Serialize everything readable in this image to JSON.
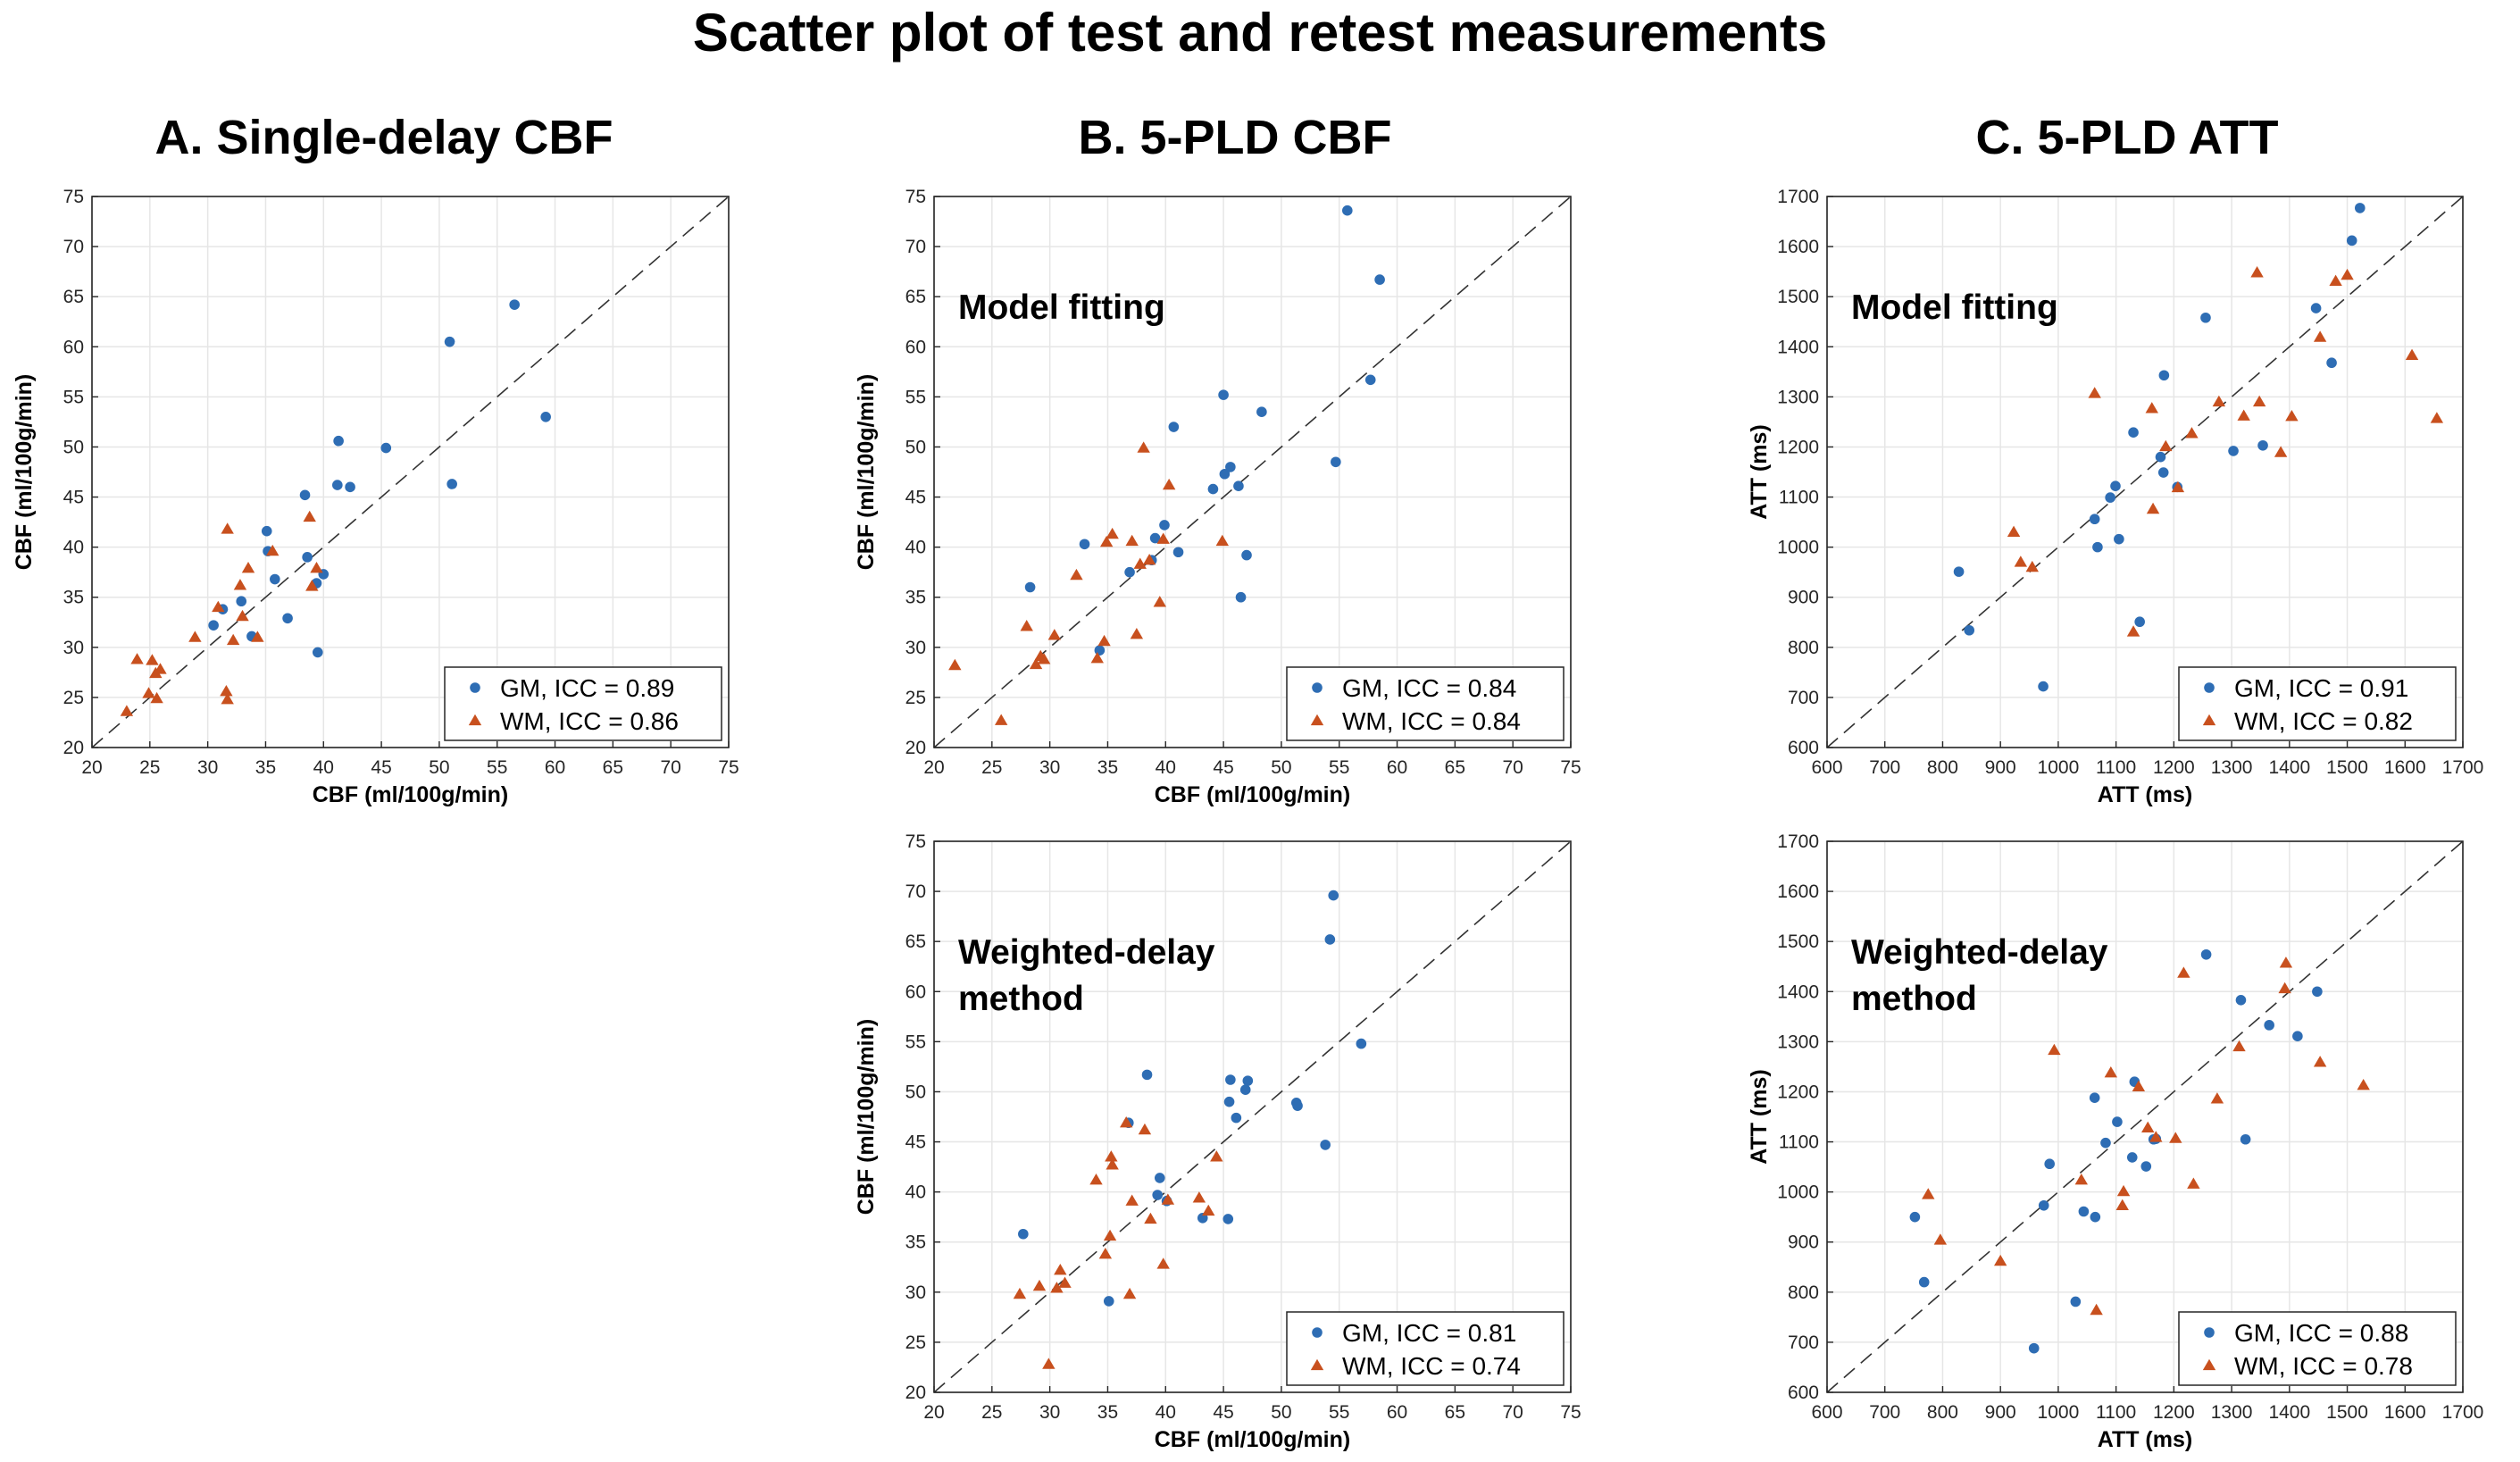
{
  "figure_title": "Scatter plot of test and retest measurements",
  "column_titles": [
    "A. Single-delay CBF",
    "B. 5-PLD CBF",
    "C. 5-PLD ATT"
  ],
  "colors": {
    "gm": "#2E6DB4",
    "wm": "#C8501E"
  },
  "chart_data": [
    {
      "id": "A",
      "type": "scatter",
      "xlabel": "CBF (ml/100g/min)",
      "ylabel": "CBF (ml/100g/min)",
      "xlim": [
        20,
        75
      ],
      "ylim": [
        20,
        75
      ],
      "xticks": [
        20,
        25,
        30,
        35,
        40,
        45,
        50,
        55,
        60,
        65,
        70,
        75
      ],
      "yticks": [
        20,
        25,
        30,
        35,
        40,
        45,
        50,
        55,
        60,
        65,
        70,
        75
      ],
      "annotation": [],
      "legend_position": "bottom-right",
      "grid": true,
      "identity_line": true,
      "series": [
        {
          "name": "GM, ICC = 0.89",
          "marker": "circle",
          "points": [
            [
              30.5,
              32.2
            ],
            [
              31.3,
              33.8
            ],
            [
              32.9,
              34.6
            ],
            [
              33.8,
              31.1
            ],
            [
              35.2,
              39.6
            ],
            [
              35.1,
              41.6
            ],
            [
              35.8,
              36.8
            ],
            [
              36.9,
              32.9
            ],
            [
              38.4,
              45.2
            ],
            [
              38.6,
              39.0
            ],
            [
              39.4,
              36.4
            ],
            [
              40.0,
              37.3
            ],
            [
              39.5,
              29.5
            ],
            [
              41.2,
              46.2
            ],
            [
              41.3,
              50.6
            ],
            [
              42.3,
              46.0
            ],
            [
              45.4,
              49.9
            ],
            [
              50.9,
              60.5
            ],
            [
              51.1,
              46.3
            ],
            [
              56.5,
              64.2
            ],
            [
              59.2,
              53.0
            ]
          ]
        },
        {
          "name": "WM, ICC = 0.86",
          "marker": "triangle",
          "points": [
            [
              23.0,
              23.6
            ],
            [
              23.9,
              28.8
            ],
            [
              24.9,
              25.4
            ],
            [
              25.2,
              28.7
            ],
            [
              25.5,
              27.4
            ],
            [
              25.6,
              24.9
            ],
            [
              25.9,
              27.8
            ],
            [
              28.9,
              31.0
            ],
            [
              30.9,
              34.0
            ],
            [
              31.6,
              25.6
            ],
            [
              31.7,
              24.8
            ],
            [
              31.7,
              41.8
            ],
            [
              32.2,
              30.7
            ],
            [
              32.8,
              36.2
            ],
            [
              33.0,
              33.1
            ],
            [
              33.5,
              37.9
            ],
            [
              34.3,
              31.0
            ],
            [
              35.6,
              39.6
            ],
            [
              38.8,
              43.0
            ],
            [
              39.0,
              36.1
            ],
            [
              39.4,
              37.9
            ]
          ]
        }
      ],
      "legend": [
        "GM, ICC = 0.89",
        "WM, ICC = 0.86"
      ]
    },
    {
      "id": "B1",
      "type": "scatter",
      "xlabel": "CBF (ml/100g/min)",
      "ylabel": "CBF (ml/100g/min)",
      "xlim": [
        20,
        75
      ],
      "ylim": [
        20,
        75
      ],
      "xticks": [
        20,
        25,
        30,
        35,
        40,
        45,
        50,
        55,
        60,
        65,
        70,
        75
      ],
      "yticks": [
        20,
        25,
        30,
        35,
        40,
        45,
        50,
        55,
        60,
        65,
        70,
        75
      ],
      "annotation": [
        "Model fitting"
      ],
      "legend_position": "bottom-right",
      "grid": true,
      "identity_line": true,
      "series": [
        {
          "name": "GM, ICC = 0.84",
          "marker": "circle",
          "points": [
            [
              28.3,
              36.0
            ],
            [
              33.0,
              40.3
            ],
            [
              34.3,
              29.7
            ],
            [
              36.9,
              37.5
            ],
            [
              38.8,
              38.7
            ],
            [
              39.1,
              40.9
            ],
            [
              39.9,
              42.2
            ],
            [
              40.7,
              52.0
            ],
            [
              41.1,
              39.5
            ],
            [
              44.1,
              45.8
            ],
            [
              45.0,
              55.2
            ],
            [
              45.1,
              47.3
            ],
            [
              45.6,
              48.0
            ],
            [
              46.3,
              46.1
            ],
            [
              46.5,
              35.0
            ],
            [
              47.0,
              39.2
            ],
            [
              48.3,
              53.5
            ],
            [
              54.7,
              48.5
            ],
            [
              55.7,
              73.6
            ],
            [
              57.7,
              56.7
            ],
            [
              58.5,
              66.7
            ]
          ]
        },
        {
          "name": "WM, ICC = 0.84",
          "marker": "triangle",
          "points": [
            [
              21.8,
              28.2
            ],
            [
              25.8,
              22.7
            ],
            [
              28.0,
              32.1
            ],
            [
              28.8,
              28.3
            ],
            [
              29.2,
              29.1
            ],
            [
              29.5,
              28.8
            ],
            [
              30.4,
              31.2
            ],
            [
              32.3,
              37.2
            ],
            [
              34.1,
              28.9
            ],
            [
              34.7,
              30.6
            ],
            [
              34.9,
              40.5
            ],
            [
              35.4,
              41.3
            ],
            [
              37.1,
              40.6
            ],
            [
              37.5,
              31.3
            ],
            [
              37.8,
              38.3
            ],
            [
              38.1,
              49.9
            ],
            [
              38.6,
              38.7
            ],
            [
              39.5,
              34.5
            ],
            [
              39.8,
              40.8
            ],
            [
              40.3,
              46.2
            ],
            [
              44.9,
              40.6
            ]
          ]
        }
      ],
      "legend": [
        "GM, ICC = 0.84",
        "WM, ICC = 0.84"
      ]
    },
    {
      "id": "C1",
      "type": "scatter",
      "xlabel": "ATT (ms)",
      "ylabel": "ATT (ms)",
      "xlim": [
        600,
        1700
      ],
      "ylim": [
        600,
        1700
      ],
      "xticks": [
        600,
        700,
        800,
        900,
        1000,
        1100,
        1200,
        1300,
        1400,
        1500,
        1600,
        1700
      ],
      "yticks": [
        600,
        700,
        800,
        900,
        1000,
        1100,
        1200,
        1300,
        1400,
        1500,
        1600,
        1700
      ],
      "annotation": [
        "Model fitting"
      ],
      "legend_position": "bottom-right",
      "grid": true,
      "identity_line": true,
      "series": [
        {
          "name": "GM, ICC = 0.91",
          "marker": "circle",
          "points": [
            [
              828,
              951
            ],
            [
              846,
              834
            ],
            [
              974,
              722
            ],
            [
              1063,
              1056
            ],
            [
              1068,
              1000
            ],
            [
              1090,
              1099
            ],
            [
              1099,
              1122
            ],
            [
              1105,
              1016
            ],
            [
              1130,
              1229
            ],
            [
              1141,
              851
            ],
            [
              1177,
              1180
            ],
            [
              1182,
              1149
            ],
            [
              1183,
              1343
            ],
            [
              1206,
              1120
            ],
            [
              1255,
              1458
            ],
            [
              1303,
              1192
            ],
            [
              1354,
              1203
            ],
            [
              1446,
              1477
            ],
            [
              1473,
              1368
            ],
            [
              1508,
              1612
            ],
            [
              1522,
              1677
            ]
          ]
        },
        {
          "name": "WM, ICC = 0.82",
          "marker": "triangle",
          "points": [
            [
              923,
              1030
            ],
            [
              935,
              970
            ],
            [
              955,
              960
            ],
            [
              1063,
              1307
            ],
            [
              1130,
              831
            ],
            [
              1162,
              1277
            ],
            [
              1164,
              1076
            ],
            [
              1186,
              1201
            ],
            [
              1207,
              1119
            ],
            [
              1231,
              1227
            ],
            [
              1278,
              1290
            ],
            [
              1321,
              1262
            ],
            [
              1344,
              1548
            ],
            [
              1348,
              1290
            ],
            [
              1385,
              1189
            ],
            [
              1404,
              1261
            ],
            [
              1453,
              1419
            ],
            [
              1480,
              1531
            ],
            [
              1500,
              1543
            ],
            [
              1612,
              1383
            ],
            [
              1655,
              1257
            ]
          ]
        }
      ],
      "legend": [
        "GM, ICC = 0.91",
        "WM, ICC = 0.82"
      ]
    },
    {
      "id": "B2",
      "type": "scatter",
      "xlabel": "CBF (ml/100g/min)",
      "ylabel": "CBF (ml/100g/min)",
      "xlim": [
        20,
        75
      ],
      "ylim": [
        20,
        75
      ],
      "xticks": [
        20,
        25,
        30,
        35,
        40,
        45,
        50,
        55,
        60,
        65,
        70,
        75
      ],
      "yticks": [
        20,
        25,
        30,
        35,
        40,
        45,
        50,
        55,
        60,
        65,
        70,
        75
      ],
      "annotation": [
        "Weighted-delay",
        "method"
      ],
      "legend_position": "bottom-right",
      "grid": true,
      "identity_line": true,
      "series": [
        {
          "name": "GM, ICC = 0.81",
          "marker": "circle",
          "points": [
            [
              27.7,
              35.8
            ],
            [
              35.1,
              29.1
            ],
            [
              36.8,
              46.9
            ],
            [
              38.4,
              51.7
            ],
            [
              39.3,
              39.7
            ],
            [
              39.5,
              41.4
            ],
            [
              40.1,
              39.1
            ],
            [
              43.2,
              37.4
            ],
            [
              45.4,
              37.3
            ],
            [
              45.5,
              49.0
            ],
            [
              45.6,
              51.2
            ],
            [
              46.1,
              47.4
            ],
            [
              46.9,
              50.2
            ],
            [
              47.1,
              51.1
            ],
            [
              51.3,
              48.9
            ],
            [
              51.4,
              48.6
            ],
            [
              53.8,
              44.7
            ],
            [
              54.2,
              65.2
            ],
            [
              54.5,
              69.6
            ],
            [
              56.9,
              54.8
            ]
          ]
        },
        {
          "name": "WM, ICC = 0.74",
          "marker": "triangle",
          "points": [
            [
              27.4,
              29.8
            ],
            [
              29.1,
              30.6
            ],
            [
              29.9,
              22.8
            ],
            [
              30.6,
              30.4
            ],
            [
              30.9,
              32.2
            ],
            [
              31.3,
              30.9
            ],
            [
              34.0,
              41.2
            ],
            [
              34.8,
              33.8
            ],
            [
              35.2,
              35.6
            ],
            [
              35.3,
              43.5
            ],
            [
              35.4,
              42.7
            ],
            [
              36.9,
              29.8
            ],
            [
              36.6,
              46.9
            ],
            [
              37.1,
              39.1
            ],
            [
              38.2,
              46.2
            ],
            [
              38.7,
              37.3
            ],
            [
              39.8,
              32.8
            ],
            [
              40.2,
              39.2
            ],
            [
              42.9,
              39.4
            ],
            [
              43.7,
              38.1
            ],
            [
              44.4,
              43.5
            ]
          ]
        }
      ],
      "legend": [
        "GM, ICC = 0.81",
        "WM, ICC = 0.74"
      ]
    },
    {
      "id": "C2",
      "type": "scatter",
      "xlabel": "ATT (ms)",
      "ylabel": "ATT (ms)",
      "xlim": [
        600,
        1700
      ],
      "ylim": [
        600,
        1700
      ],
      "xticks": [
        600,
        700,
        800,
        900,
        1000,
        1100,
        1200,
        1300,
        1400,
        1500,
        1600,
        1700
      ],
      "yticks": [
        600,
        700,
        800,
        900,
        1000,
        1100,
        1200,
        1300,
        1400,
        1500,
        1600,
        1700
      ],
      "annotation": [
        "Weighted-delay",
        "method"
      ],
      "legend_position": "bottom-right",
      "grid": true,
      "identity_line": true,
      "series": [
        {
          "name": "GM, ICC = 0.88",
          "marker": "circle",
          "points": [
            [
              752,
              950
            ],
            [
              768,
              820
            ],
            [
              958,
              688
            ],
            [
              975,
              973
            ],
            [
              985,
              1056
            ],
            [
              1030,
              781
            ],
            [
              1044,
              961
            ],
            [
              1063,
              1188
            ],
            [
              1064,
              950
            ],
            [
              1082,
              1098
            ],
            [
              1102,
              1140
            ],
            [
              1128,
              1069
            ],
            [
              1132,
              1220
            ],
            [
              1152,
              1051
            ],
            [
              1165,
              1105
            ],
            [
              1169,
              1106
            ],
            [
              1256,
              1474
            ],
            [
              1316,
              1383
            ],
            [
              1324,
              1105
            ],
            [
              1365,
              1333
            ],
            [
              1414,
              1311
            ],
            [
              1448,
              1400
            ]
          ]
        },
        {
          "name": "WM, ICC = 0.78",
          "marker": "triangle",
          "points": [
            [
              775,
              995
            ],
            [
              796,
              904
            ],
            [
              900,
              862
            ],
            [
              993,
              1283
            ],
            [
              1040,
              1024
            ],
            [
              1066,
              764
            ],
            [
              1091,
              1238
            ],
            [
              1111,
              973
            ],
            [
              1113,
              1001
            ],
            [
              1139,
              1210
            ],
            [
              1155,
              1128
            ],
            [
              1169,
              1109
            ],
            [
              1203,
              1107
            ],
            [
              1217,
              1437
            ],
            [
              1234,
              1016
            ],
            [
              1275,
              1186
            ],
            [
              1313,
              1290
            ],
            [
              1392,
              1406
            ],
            [
              1394,
              1457
            ],
            [
              1453,
              1259
            ],
            [
              1528,
              1213
            ]
          ]
        }
      ],
      "legend": [
        "GM, ICC = 0.88",
        "WM, ICC = 0.78"
      ]
    }
  ]
}
